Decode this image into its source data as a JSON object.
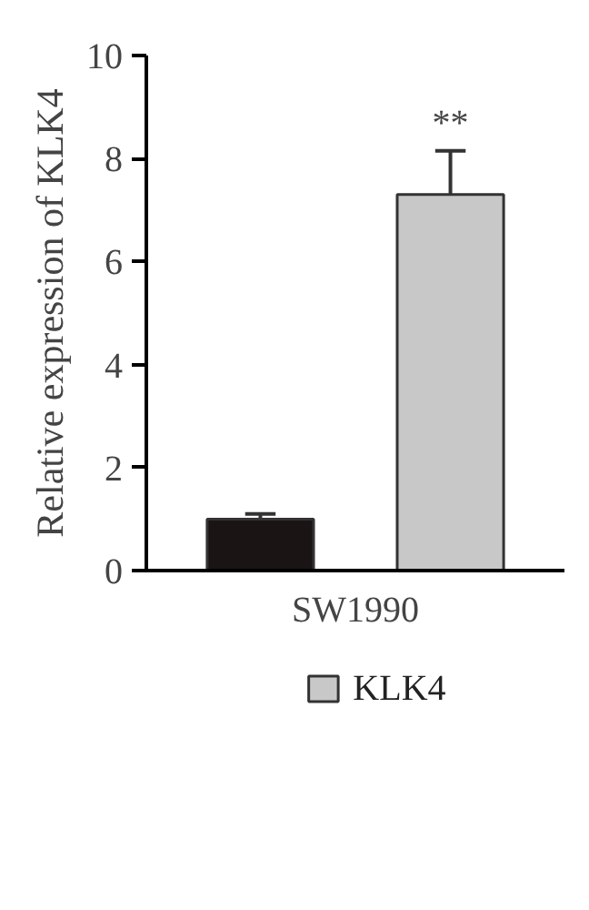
{
  "chart_data": {
    "type": "bar",
    "ylabel": "Relative expression of KLK4",
    "categories": [
      "SW1990"
    ],
    "series": [
      {
        "color": "#1a1414",
        "values": [
          1.0
        ],
        "errors": [
          0.1
        ]
      },
      {
        "name": "KLK4",
        "color": "#c8c8c8",
        "values": [
          7.3
        ],
        "errors": [
          0.85
        ]
      }
    ],
    "ylim": [
      0,
      10
    ],
    "yticks": [
      0,
      2,
      4,
      6,
      8,
      10
    ],
    "grid": false,
    "legend": "bottom",
    "annotations": [
      "**"
    ]
  }
}
